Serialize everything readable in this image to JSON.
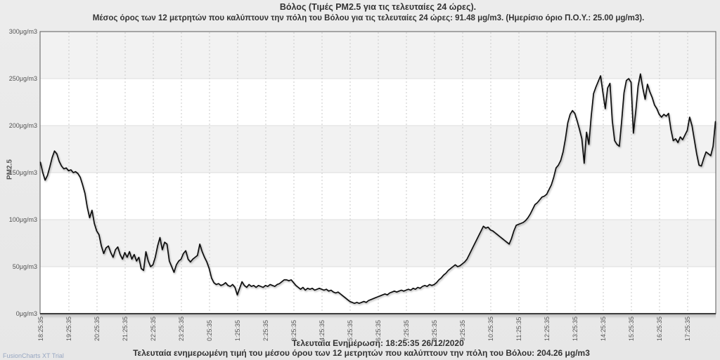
{
  "page": {
    "background": "#e9e9e9"
  },
  "footer": {
    "last_update": "Τελευταία Ενημέρωση: 18:25:35 26/12/2020",
    "last_value_text": "Τελευταία ενημερωμένη τιμή του μέσου όρου των 12 μετρητών που καλύπτουν την πόλη του Βόλου: 204.26 μg/m3"
  },
  "watermark": "FusionCharts XT Trial",
  "chart_data": {
    "type": "line",
    "title": "Βόλος (Τιμές PM2.5 για τις τελευταίες 24 ώρες).",
    "subtitle": "Μέσος όρος των 12 μετρητών που καλύπτουν την πόλη του Βόλου για τις τελευταίες 24 ώρες: 91.48 μg/m3. (Ημερίσιο όριο Π.Ο.Υ.: 25.00 μg/m3).",
    "ylabel": "PM2.5",
    "ylim": [
      0,
      300
    ],
    "y_tick_interval": 50,
    "y_tick_labels_bottom_to_top": [
      "0μg/m3",
      "50μg/m3",
      "100μg/m3",
      "150μg/m3",
      "200μg/m3",
      "250μg/m3",
      "300μg/m3"
    ],
    "x_tick_labels": [
      "18:25:35",
      "19:25:35",
      "20:25:35",
      "21:25:35",
      "22:25:35",
      "23:25:35",
      "0:25:35",
      "1:25:35",
      "2:25:35",
      "3:25:35",
      "4:25:35",
      "5:25:35",
      "6:25:35",
      "7:25:35",
      "8:25:35",
      "9:25:35",
      "10:25:35",
      "11:25:35",
      "12:25:35",
      "13:25:35",
      "14:25:35",
      "15:25:35",
      "16:25:35",
      "17:25:35"
    ],
    "points_per_hour": 12,
    "grid": {
      "horizontal": "solid",
      "vertical": "dashed",
      "alternate_bands": true
    },
    "line_color": "#111111",
    "avg_24h_ugm3": 91.48,
    "who_daily_limit_ugm3": 25.0,
    "last_value_ugm3": 204.26,
    "last_update_time": "18:25:35 26/12/2020",
    "series": [
      {
        "name": "PM2.5",
        "values": [
          161,
          150,
          142,
          147,
          156,
          166,
          173,
          170,
          162,
          157,
          154,
          155,
          152,
          153,
          150,
          151,
          149,
          145,
          137,
          128,
          113,
          102,
          110,
          96,
          88,
          84,
          72,
          64,
          70,
          72,
          65,
          60,
          68,
          71,
          63,
          58,
          65,
          60,
          66,
          58,
          63,
          56,
          60,
          48,
          46,
          66,
          56,
          50,
          52,
          60,
          72,
          81,
          68,
          76,
          74,
          56,
          50,
          44,
          52,
          56,
          58,
          64,
          67,
          58,
          55,
          58,
          60,
          62,
          74,
          66,
          60,
          55,
          48,
          38,
          33,
          31,
          32,
          30,
          31,
          33,
          30,
          29,
          31,
          28,
          20,
          27,
          34,
          30,
          28,
          31,
          29,
          30,
          28,
          30,
          29,
          28,
          30,
          29,
          31,
          30,
          29,
          31,
          32,
          34,
          36,
          36,
          35,
          36,
          33,
          30,
          28,
          26,
          28,
          25,
          27,
          26,
          27,
          25,
          26,
          27,
          26,
          25,
          26,
          24,
          25,
          23,
          22,
          23,
          21,
          19,
          17,
          15,
          13,
          12,
          11,
          12,
          11,
          12,
          13,
          12,
          14,
          15,
          16,
          17,
          18,
          19,
          20,
          21,
          20,
          22,
          23,
          24,
          23,
          24,
          25,
          24,
          25,
          26,
          25,
          27,
          26,
          28,
          27,
          29,
          30,
          29,
          31,
          30,
          31,
          33,
          36,
          38,
          41,
          43,
          46,
          48,
          50,
          52,
          50,
          51,
          53,
          55,
          58,
          63,
          68,
          73,
          78,
          83,
          88,
          93,
          91,
          92,
          89,
          88,
          86,
          84,
          82,
          80,
          78,
          76,
          74,
          80,
          88,
          94,
          95,
          96,
          97,
          99,
          102,
          106,
          111,
          116,
          118,
          121,
          124,
          125,
          127,
          132,
          137,
          145,
          155,
          158,
          163,
          172,
          186,
          203,
          212,
          216,
          213,
          205,
          196,
          186,
          160,
          193,
          180,
          210,
          234,
          241,
          247,
          253,
          235,
          218,
          240,
          245,
          205,
          184,
          180,
          178,
          205,
          235,
          248,
          250,
          246,
          192,
          215,
          242,
          255,
          240,
          228,
          244,
          236,
          230,
          222,
          218,
          212,
          209,
          212,
          210,
          213,
          196,
          184,
          186,
          182,
          188,
          185,
          190,
          195,
          209,
          200,
          185,
          170,
          158,
          157,
          165,
          172,
          170,
          168,
          178,
          204.26
        ]
      }
    ]
  }
}
